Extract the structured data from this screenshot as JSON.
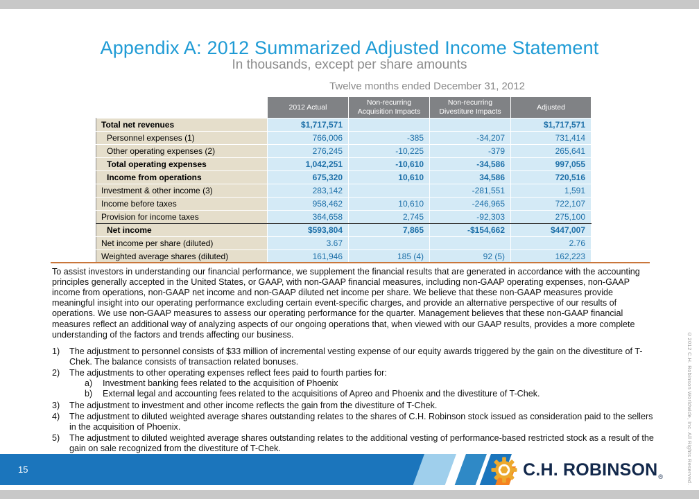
{
  "slide": {
    "title": "Appendix A: 2012 Summarized Adjusted Income Statement",
    "subtitle": "In thousands, except per share amounts"
  },
  "table": {
    "caption": "Twelve months ended December 31, 2012",
    "columns": [
      "2012 Actual",
      "Non-recurring\nAcquisition Impacts",
      "Non-recurring\nDivestiture Impacts",
      "Adjusted"
    ],
    "rows": [
      {
        "label": "Total net revenues",
        "bold": true,
        "indent": 0,
        "rule_below": false,
        "values": [
          "$1,717,571",
          "",
          "",
          "$1,717,571"
        ]
      },
      {
        "label": "Personnel expenses (1)",
        "bold": false,
        "indent": 1,
        "rule_below": false,
        "values": [
          "766,006",
          "-385",
          "-34,207",
          "731,414"
        ]
      },
      {
        "label": "Other operating expenses (2)",
        "bold": false,
        "indent": 1,
        "rule_below": false,
        "values": [
          "276,245",
          "-10,225",
          "-379",
          "265,641"
        ]
      },
      {
        "label": "Total operating expenses",
        "bold": true,
        "indent": 1,
        "rule_below": false,
        "values": [
          "1,042,251",
          "-10,610",
          "-34,586",
          "997,055"
        ]
      },
      {
        "label": "Income from operations",
        "bold": true,
        "indent": 1,
        "rule_below": false,
        "values": [
          "675,320",
          "10,610",
          "34,586",
          "720,516"
        ]
      },
      {
        "label": "Investment & other income (3)",
        "bold": false,
        "indent": 0,
        "rule_below": false,
        "values": [
          "283,142",
          "",
          "-281,551",
          "1,591"
        ]
      },
      {
        "label": "Income before taxes",
        "bold": false,
        "indent": 0,
        "rule_below": false,
        "values": [
          "958,462",
          "10,610",
          "-246,965",
          "722,107"
        ]
      },
      {
        "label": "Provision for income taxes",
        "bold": false,
        "indent": 0,
        "rule_below": true,
        "values": [
          "364,658",
          "2,745",
          "-92,303",
          "275,100"
        ]
      },
      {
        "label": "Net income",
        "bold": true,
        "indent": 1,
        "rule_below": false,
        "values": [
          "$593,804",
          "7,865",
          "-$154,662",
          "$447,007"
        ]
      },
      {
        "label": "Net income per share (diluted)",
        "bold": false,
        "indent": 0,
        "rule_below": false,
        "values": [
          "3.67",
          "",
          "",
          "2.76"
        ]
      },
      {
        "label": "Weighted average shares (diluted)",
        "bold": false,
        "indent": 0,
        "rule_below": false,
        "values": [
          "161,946",
          "185 (4)",
          "92 (5)",
          "162,223"
        ]
      }
    ]
  },
  "body": {
    "paragraph": "To assist investors in understanding our financial performance, we supplement the financial results that are generated in accordance with the accounting principles generally accepted in the United States, or GAAP, with non-GAAP financial measures, including non-GAAP operating expenses, non-GAAP income from operations, non-GAAP net income and non-GAAP diluted net income per share. We believe that these non-GAAP measures provide meaningful insight into our operating performance excluding certain event-specific charges, and provide an alternative perspective of our results of operations. We use non-GAAP measures to assess our operating performance for the quarter. Management believes that these non-GAAP financial measures reflect an additional way of analyzing aspects of our ongoing operations that, when viewed with our GAAP results, provides a more complete understanding of the factors and trends affecting our business."
  },
  "notes": [
    {
      "num": "1)",
      "text": "The adjustment to personnel consists of $33 million of incremental vesting expense of our equity awards triggered by the gain on the divestiture of T-Chek. The balance consists of transaction related bonuses.",
      "subs": []
    },
    {
      "num": "2)",
      "text": "The adjustments to other operating expenses reflect fees paid to fourth parties for:",
      "subs": [
        {
          "num": "a)",
          "text": "Investment banking fees related to the acquisition of Phoenix"
        },
        {
          "num": "b)",
          "text": "External legal and accounting fees related to the acquisitions of Apreo and Phoenix and the divestiture of T-Chek."
        }
      ]
    },
    {
      "num": "3)",
      "text": "The adjustment to investment and other income reflects the gain from the divestiture of T-Chek.",
      "subs": []
    },
    {
      "num": "4)",
      "text": "The adjustment to diluted weighted average shares outstanding relates to the shares of C.H. Robinson stock issued as consideration paid to the sellers in the acquisition of Phoenix.",
      "subs": []
    },
    {
      "num": "5)",
      "text": "The adjustment to diluted weighted average shares outstanding relates to the additional vesting of performance-based restricted stock as a result of the gain on sale recognized from the divestiture of T-Chek.",
      "subs": []
    }
  ],
  "footer": {
    "page_number": "15",
    "logo_text": "C.H. ROBINSON",
    "logo_reg": "®",
    "copyright": "©2012 C.H. Robinson Worldwide, Inc. All Rights Reserved."
  },
  "colors": {
    "accent_blue": "#1F9BD5",
    "muted_gray": "#8A8A8A",
    "header_gray": "#808285",
    "label_tan": "#E5DECB",
    "cell_blue": "#D4EAF6",
    "value_blue": "#1C6FA8",
    "footer_blue": "#1B75BC",
    "stripe_light": "#9FCFEC",
    "stripe_mid": "#2F89C6",
    "orange": "#F58220",
    "rule_orange": "#C9763B",
    "logo_gold": "#ECA92E",
    "logo_navy": "#12284B",
    "strip_gray": "#C8C8C8"
  }
}
